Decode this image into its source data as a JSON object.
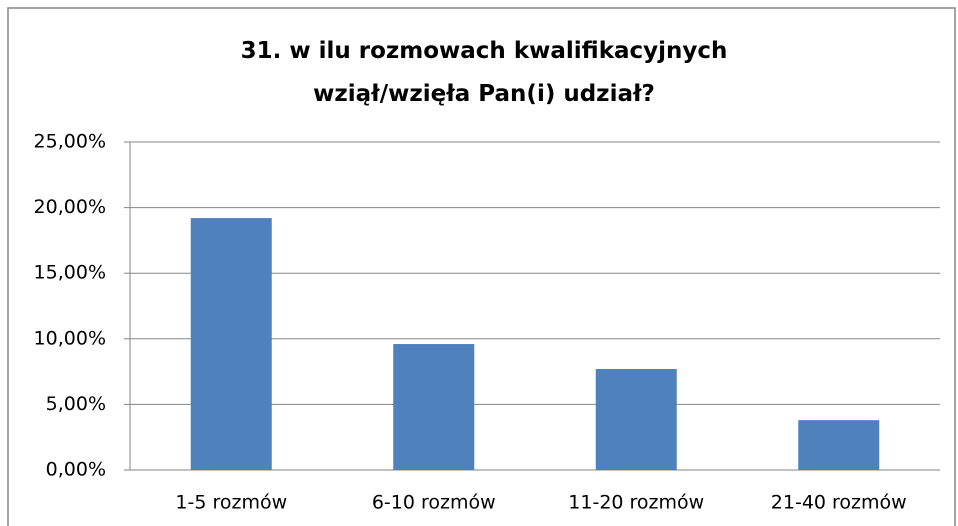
{
  "chart_data": {
    "type": "bar",
    "title": "31. w ilu rozmowach kwalifikacyjnych wziął/wzięła Pan(i) udział?",
    "categories": [
      "1-5 rozmów",
      "6-10 rozmów",
      "11-20 rozmów",
      "21-40 rozmów"
    ],
    "values": [
      19.2,
      9.6,
      7.7,
      3.8
    ],
    "color": "#4f81bd",
    "ylim": [
      0,
      25
    ],
    "yticks": [
      {
        "value": 0,
        "label": "0,00%"
      },
      {
        "value": 5,
        "label": "5,00%"
      },
      {
        "value": 10,
        "label": "10,00%"
      },
      {
        "value": 15,
        "label": "15,00%"
      },
      {
        "value": 20,
        "label": "20,00%"
      },
      {
        "value": 25,
        "label": "25,00%"
      }
    ],
    "grid": true
  }
}
